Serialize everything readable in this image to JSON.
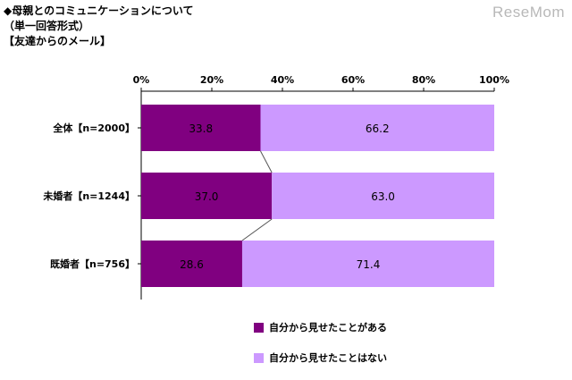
{
  "header": {
    "title": "◆母親とのコミュニケーションについて",
    "subtitle": "（単一回答形式）",
    "topic": "【友達からのメール】"
  },
  "watermark": "ReseMom",
  "chart_data": {
    "type": "bar",
    "orientation": "horizontal",
    "stacked": true,
    "percent": true,
    "categories": [
      "全体【n=2000】",
      "未婚者【n=1244】",
      "既婚者【n=756】"
    ],
    "series": [
      {
        "name": "自分から見せたことがある",
        "values": [
          33.8,
          37.0,
          28.6
        ],
        "labels": [
          "33.8",
          "37.0",
          "28.6"
        ],
        "color": "#800080"
      },
      {
        "name": "自分から見せたことはない",
        "values": [
          66.2,
          63.0,
          71.4
        ],
        "labels": [
          "66.2",
          "63.0",
          "71.4"
        ],
        "color": "#cc99ff"
      }
    ],
    "xlim": [
      0,
      100
    ],
    "ticks": [
      "0%",
      "20%",
      "40%",
      "60%",
      "80%",
      "100%"
    ],
    "series_lines": true,
    "gridlines": false,
    "legend_position": "bottom"
  }
}
